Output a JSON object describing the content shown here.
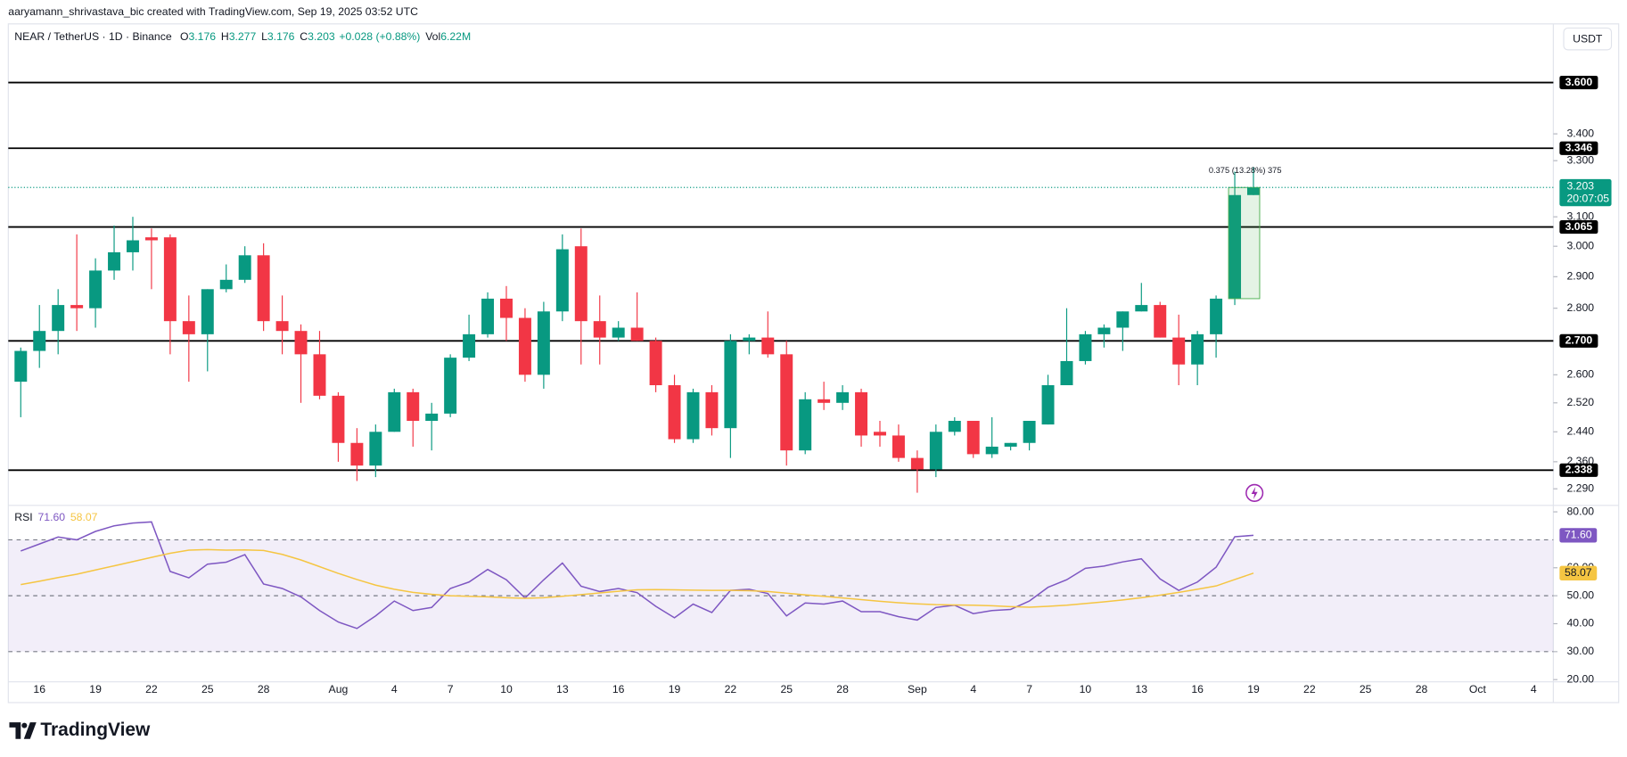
{
  "header": {
    "credit": "aaryamann_shrivastava_bic created with TradingView.com, Sep 19, 2025 03:52 UTC",
    "symbol": "NEAR / TetherUS · 1D · Binance",
    "ohlc": [
      {
        "label": "O",
        "value": 3.176
      },
      {
        "label": "H",
        "value": 3.277
      },
      {
        "label": "L",
        "value": 3.176
      },
      {
        "label": "C",
        "value": 3.203
      }
    ],
    "change": "+0.028 (+0.88%)",
    "volume_label": "Vol",
    "volume": "6.22M",
    "currency": "USDT"
  },
  "chart_data": [
    {
      "type": "candlestick",
      "categories": [
        null,
        "16",
        null,
        null,
        "19",
        null,
        null,
        "22",
        null,
        null,
        "25",
        null,
        null,
        "28",
        null,
        null,
        null,
        "Aug",
        null,
        null,
        "4",
        null,
        null,
        "7",
        null,
        null,
        "10",
        null,
        null,
        "13",
        null,
        null,
        "16",
        null,
        null,
        "19",
        null,
        null,
        "22",
        null,
        null,
        "25",
        null,
        null,
        "28",
        null,
        null,
        null,
        "Sep",
        null,
        null,
        "4",
        null,
        null,
        "7",
        null,
        null,
        "10",
        null,
        null,
        "13",
        null,
        null,
        "16",
        null,
        null,
        "19",
        null,
        null,
        "22",
        null,
        null,
        "25",
        null,
        null,
        "28",
        null,
        null,
        "Oct",
        null,
        null,
        "4",
        null
      ],
      "open": [
        2.58,
        2.67,
        2.73,
        2.81,
        2.8,
        2.92,
        2.98,
        3.03,
        3.03,
        2.76,
        2.72,
        2.86,
        2.89,
        2.97,
        2.76,
        2.73,
        2.66,
        2.54,
        2.41,
        2.35,
        2.44,
        2.55,
        2.47,
        2.49,
        2.65,
        2.72,
        2.83,
        2.77,
        2.6,
        2.79,
        3.0,
        2.76,
        2.71,
        2.74,
        2.7,
        2.57,
        2.42,
        2.55,
        2.45,
        2.7,
        2.71,
        2.66,
        2.39,
        2.53,
        2.52,
        2.55,
        2.44,
        2.43,
        2.37,
        2.34,
        2.44,
        2.47,
        2.38,
        2.4,
        2.41,
        2.46,
        2.57,
        2.64,
        2.72,
        2.74,
        2.79,
        2.81,
        2.71,
        2.63,
        2.72,
        2.83,
        3.176,
        null,
        null,
        null,
        null,
        null,
        null,
        null,
        null,
        null,
        null,
        null,
        null,
        null,
        null,
        null,
        null
      ],
      "high": [
        2.68,
        2.81,
        2.86,
        3.04,
        2.96,
        3.07,
        3.1,
        3.06,
        3.04,
        2.84,
        2.86,
        2.94,
        3.0,
        3.01,
        2.84,
        2.75,
        2.73,
        2.55,
        2.45,
        2.46,
        2.56,
        2.56,
        2.52,
        2.66,
        2.78,
        2.85,
        2.87,
        2.8,
        2.82,
        3.04,
        3.06,
        2.84,
        2.76,
        2.85,
        2.71,
        2.6,
        2.56,
        2.57,
        2.72,
        2.72,
        2.79,
        2.7,
        2.55,
        2.58,
        2.57,
        2.56,
        2.47,
        2.46,
        2.39,
        2.46,
        2.48,
        2.47,
        2.48,
        2.41,
        2.47,
        2.6,
        2.8,
        2.73,
        2.75,
        2.79,
        2.88,
        2.82,
        2.78,
        2.73,
        2.84,
        3.26,
        3.277,
        null,
        null,
        null,
        null,
        null,
        null,
        null,
        null,
        null,
        null,
        null,
        null,
        null,
        null,
        null,
        null
      ],
      "low": [
        2.48,
        2.62,
        2.66,
        2.73,
        2.74,
        2.89,
        2.92,
        2.86,
        2.66,
        2.58,
        2.61,
        2.85,
        2.88,
        2.73,
        2.66,
        2.52,
        2.53,
        2.36,
        2.31,
        2.32,
        2.44,
        2.4,
        2.39,
        2.48,
        2.64,
        2.71,
        2.7,
        2.58,
        2.56,
        2.76,
        2.63,
        2.63,
        2.7,
        2.7,
        2.55,
        2.41,
        2.41,
        2.43,
        2.37,
        2.66,
        2.65,
        2.35,
        2.38,
        2.5,
        2.5,
        2.4,
        2.4,
        2.36,
        2.28,
        2.32,
        2.43,
        2.37,
        2.37,
        2.39,
        2.39,
        2.46,
        2.57,
        2.63,
        2.68,
        2.67,
        2.79,
        2.71,
        2.57,
        2.57,
        2.65,
        2.81,
        3.176,
        null,
        null,
        null,
        null,
        null,
        null,
        null,
        null,
        null,
        null,
        null,
        null,
        null,
        null,
        null,
        null
      ],
      "close": [
        2.67,
        2.73,
        2.81,
        2.8,
        2.92,
        2.98,
        3.02,
        3.02,
        2.76,
        2.72,
        2.86,
        2.89,
        2.97,
        2.76,
        2.73,
        2.66,
        2.54,
        2.41,
        2.35,
        2.44,
        2.55,
        2.47,
        2.49,
        2.65,
        2.72,
        2.83,
        2.77,
        2.6,
        2.79,
        2.99,
        2.76,
        2.71,
        2.74,
        2.7,
        2.57,
        2.42,
        2.55,
        2.45,
        2.7,
        2.71,
        2.66,
        2.39,
        2.53,
        2.52,
        2.55,
        2.43,
        2.43,
        2.37,
        2.34,
        2.44,
        2.47,
        2.38,
        2.4,
        2.41,
        2.47,
        2.57,
        2.64,
        2.72,
        2.74,
        2.79,
        2.81,
        2.71,
        2.63,
        2.72,
        2.83,
        3.176,
        3.203,
        null,
        null,
        null,
        null,
        null,
        null,
        null,
        null,
        null,
        null,
        null,
        null,
        null,
        null,
        null,
        null
      ],
      "up_color": "#089981",
      "down_color": "#f23645",
      "ylim": [
        2.248,
        3.834
      ],
      "log_scale": true,
      "grid": false,
      "yticks": [
        {
          "value": 3.4,
          "label": "3.400"
        },
        {
          "value": 3.3,
          "label": "3.300"
        },
        {
          "value": 3.1,
          "label": "3.100"
        },
        {
          "value": 3.0,
          "label": "3.000"
        },
        {
          "value": 2.9,
          "label": "2.900"
        },
        {
          "value": 2.8,
          "label": "2.800"
        },
        {
          "value": 2.6,
          "label": "2.600"
        },
        {
          "value": 2.52,
          "label": "2.520"
        },
        {
          "value": 2.44,
          "label": "2.440"
        },
        {
          "value": 2.36,
          "label": "2.360"
        },
        {
          "value": 2.29,
          "label": "2.290"
        }
      ],
      "levels": [
        {
          "value": 3.6,
          "label": "3.600"
        },
        {
          "value": 3.346,
          "label": "3.346"
        },
        {
          "value": 3.065,
          "label": "3.065"
        },
        {
          "value": 2.7,
          "label": "2.700"
        },
        {
          "value": 2.338,
          "label": "2.338"
        }
      ],
      "last_price": 3.203,
      "countdown": "20:07:05",
      "annotation": "0.375 (13.28%) 375"
    },
    {
      "type": "line",
      "title": "RSI",
      "series": [
        {
          "color": "#7e57c2",
          "last_label": "71.60",
          "values": [
            66,
            68.5,
            71,
            70,
            73,
            75,
            76,
            76.4,
            58.7,
            56.4,
            61.3,
            62,
            64.7,
            54.2,
            52.6,
            49.6,
            44.7,
            40.6,
            38.3,
            42.8,
            48.1,
            44.7,
            45.8,
            52.6,
            54.9,
            59.4,
            55.7,
            49.2,
            55.7,
            61.7,
            53.4,
            51.5,
            52.6,
            51.1,
            46.2,
            42.1,
            47,
            44,
            51.9,
            52.3,
            50.8,
            42.8,
            47.4,
            47,
            48.1,
            44.3,
            44.3,
            42.5,
            41.3,
            45.8,
            46.6,
            43.6,
            44.7,
            45.1,
            48.1,
            53,
            55.7,
            59.8,
            60.6,
            62.1,
            63.2,
            56,
            51.9,
            54.9,
            60.2,
            71.1,
            71.6,
            null,
            null,
            null,
            null,
            null,
            null,
            null,
            null,
            null,
            null,
            null,
            null,
            null,
            null,
            null,
            null
          ]
        },
        {
          "color": "#f5c542",
          "last_label": "58.07",
          "values": [
            54,
            55.2,
            56.5,
            57.7,
            59.2,
            60.7,
            62.2,
            63.7,
            65.2,
            66.3,
            66.5,
            66.3,
            66.4,
            66.2,
            64.8,
            62.8,
            60.4,
            58,
            55.8,
            53.8,
            52.3,
            51.2,
            50.5,
            50,
            49.8,
            49.6,
            49.3,
            49.1,
            49.3,
            49.8,
            50.4,
            51,
            51.6,
            52.1,
            52.2,
            52.1,
            52,
            51.9,
            51.9,
            51.8,
            51.5,
            50.9,
            50.3,
            49.8,
            49.2,
            48.6,
            48,
            47.5,
            47.1,
            46.8,
            46.7,
            46.6,
            46.4,
            46.1,
            45.9,
            46.2,
            46.6,
            47.2,
            47.8,
            48.5,
            49.3,
            50.2,
            51.2,
            52.3,
            53.5,
            55.8,
            58.07,
            null,
            null,
            null,
            null,
            null,
            null,
            null,
            null,
            null,
            null,
            null,
            null,
            null,
            null,
            null,
            null
          ]
        }
      ],
      "ylim": [
        19.2,
        82.3
      ],
      "yticks": [
        {
          "value": 80,
          "label": "80.00"
        },
        {
          "value": 60,
          "label": "60.00"
        },
        {
          "value": 50,
          "label": "50.00"
        },
        {
          "value": 40,
          "label": "40.00"
        },
        {
          "value": 30,
          "label": "30.00"
        },
        {
          "value": 20,
          "label": "20.00"
        }
      ],
      "bands": {
        "upper": 70,
        "middle": 50,
        "lower": 30
      }
    }
  ],
  "footer": {
    "brand": "TradingView"
  }
}
